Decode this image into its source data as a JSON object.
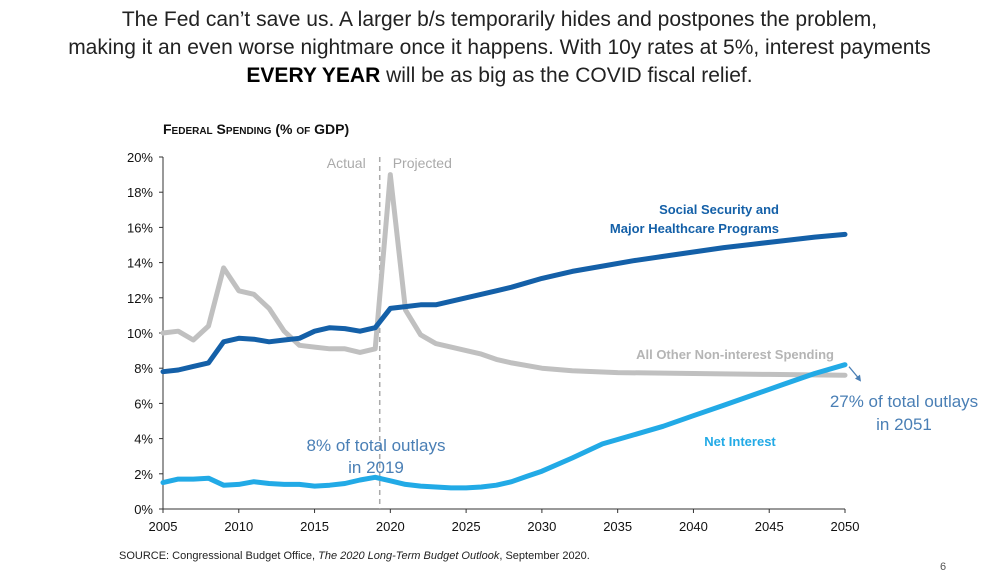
{
  "headline": {
    "line1": "The Fed can’t save us. A larger b/s temporarily hides and postpones the problem,",
    "line2": "making it an even worse nightmare once it happens. With 10y rates at 5%, interest payments",
    "line3_bold": "EVERY YEAR",
    "line3_rest": " will be as big as the COVID fiscal relief."
  },
  "source": {
    "prefix": "SOURCE: Congressional Budget Office, ",
    "title": "The 2020 Long-Term Budget Outlook",
    "suffix": ", September 2020."
  },
  "page_number": "6",
  "colors": {
    "social_security": "#1460a8",
    "other": "#c0c0c0",
    "net_interest": "#22aae6",
    "annotation": "#4a7fb5",
    "divider": "#aaaaaa"
  },
  "chart_data": {
    "type": "line",
    "title": "Federal Spending (% of GDP)",
    "xlabel": "",
    "ylabel": "",
    "xlim": [
      2005,
      2050
    ],
    "ylim": [
      0,
      20
    ],
    "x_ticks": [
      "2005",
      "2010",
      "2015",
      "2020",
      "2025",
      "2030",
      "2035",
      "2040",
      "2045",
      "2050"
    ],
    "y_ticks": [
      "0%",
      "2%",
      "4%",
      "6%",
      "8%",
      "10%",
      "12%",
      "14%",
      "16%",
      "18%",
      "20%"
    ],
    "divider": {
      "x": 2019.3,
      "left_label": "Actual",
      "right_label": "Projected"
    },
    "series": [
      {
        "name": "Social Security and Major Healthcare Programs",
        "label_lines": [
          "Social Security and",
          "Major Healthcare Programs"
        ],
        "x": [
          2005,
          2006,
          2007,
          2008,
          2009,
          2010,
          2011,
          2012,
          2013,
          2014,
          2015,
          2016,
          2017,
          2018,
          2019,
          2020,
          2021,
          2022,
          2023,
          2024,
          2025,
          2026,
          2027,
          2028,
          2029,
          2030,
          2031,
          2032,
          2034,
          2036,
          2038,
          2040,
          2042,
          2044,
          2046,
          2048,
          2050
        ],
        "values": [
          7.8,
          7.9,
          8.1,
          8.3,
          9.5,
          9.7,
          9.65,
          9.5,
          9.6,
          9.7,
          10.1,
          10.3,
          10.25,
          10.1,
          10.3,
          11.4,
          11.5,
          11.6,
          11.6,
          11.8,
          12.0,
          12.2,
          12.4,
          12.6,
          12.85,
          13.1,
          13.3,
          13.5,
          13.8,
          14.1,
          14.35,
          14.6,
          14.85,
          15.05,
          15.25,
          15.45,
          15.6
        ]
      },
      {
        "name": "All Other Non-interest Spending",
        "label_lines": [
          "All Other Non-interest Spending"
        ],
        "x": [
          2005,
          2006,
          2007,
          2008,
          2009,
          2010,
          2011,
          2012,
          2013,
          2014,
          2015,
          2016,
          2017,
          2018,
          2019,
          2020,
          2021,
          2022,
          2023,
          2024,
          2025,
          2026,
          2027,
          2028,
          2030,
          2032,
          2035,
          2040,
          2045,
          2050
        ],
        "values": [
          10.0,
          10.1,
          9.6,
          10.4,
          13.7,
          12.4,
          12.2,
          11.4,
          10.1,
          9.3,
          9.2,
          9.1,
          9.1,
          8.9,
          9.1,
          19.0,
          11.3,
          9.9,
          9.4,
          9.2,
          9.0,
          8.8,
          8.5,
          8.3,
          8.0,
          7.85,
          7.75,
          7.7,
          7.65,
          7.6
        ]
      },
      {
        "name": "Net Interest",
        "label_lines": [
          "Net Interest"
        ],
        "x": [
          2005,
          2006,
          2007,
          2008,
          2009,
          2010,
          2011,
          2012,
          2013,
          2014,
          2015,
          2016,
          2017,
          2018,
          2019,
          2020,
          2021,
          2022,
          2023,
          2024,
          2025,
          2026,
          2027,
          2028,
          2029,
          2030,
          2032,
          2034,
          2036,
          2038,
          2040,
          2042,
          2044,
          2046,
          2048,
          2050
        ],
        "values": [
          1.5,
          1.7,
          1.7,
          1.75,
          1.35,
          1.4,
          1.55,
          1.45,
          1.4,
          1.4,
          1.3,
          1.35,
          1.45,
          1.65,
          1.8,
          1.6,
          1.4,
          1.3,
          1.25,
          1.2,
          1.2,
          1.25,
          1.35,
          1.55,
          1.85,
          2.15,
          2.9,
          3.7,
          4.2,
          4.7,
          5.3,
          5.9,
          6.5,
          7.1,
          7.7,
          8.2
        ]
      }
    ],
    "annotations": [
      {
        "name": "annotation-2019",
        "lines": [
          "8% of total outlays",
          "in 2019"
        ]
      },
      {
        "name": "annotation-2051",
        "lines": [
          "27% of total outlays",
          "in 2051"
        ]
      }
    ]
  }
}
